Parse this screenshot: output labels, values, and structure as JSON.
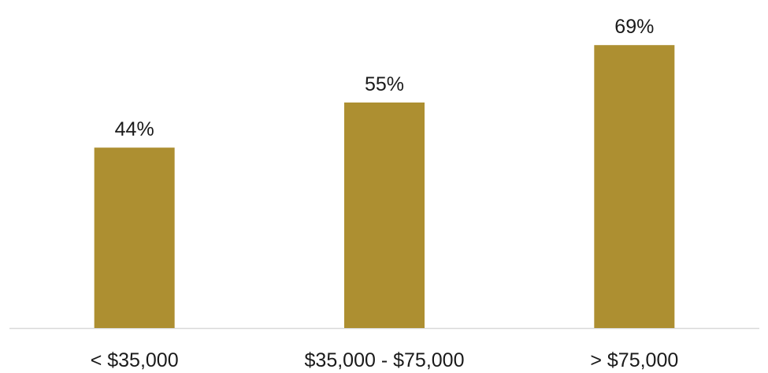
{
  "chart_data": {
    "type": "bar",
    "categories": [
      "< $35,000",
      "$35,000 - $75,000",
      "> $75,000"
    ],
    "values": [
      44,
      55,
      69
    ],
    "data_labels": [
      "44%",
      "55%",
      "69%"
    ],
    "title": "",
    "xlabel": "",
    "ylabel": "",
    "ylim": [
      0,
      80
    ],
    "grid": false,
    "legend": "none",
    "bar_color": "#AD8F31",
    "axis_color": "#D9D9D9"
  }
}
